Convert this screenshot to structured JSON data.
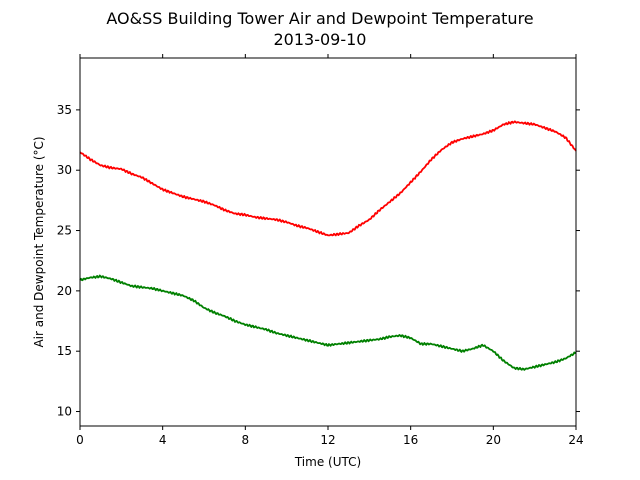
{
  "chart_data": {
    "type": "line",
    "title": "AO&SS Building Tower Air and Dewpoint Temperature",
    "subtitle": "2013-09-10",
    "xlabel": "Time (UTC)",
    "ylabel": "Air and Dewpoint Temperature (°C)",
    "xlim": [
      0,
      24
    ],
    "ylim": [
      8.8,
      39.3
    ],
    "xticks": [
      0,
      4,
      8,
      12,
      16,
      20,
      24
    ],
    "yticks": [
      10,
      15,
      20,
      25,
      30,
      35
    ],
    "grid": false,
    "series": [
      {
        "color": "#ff0000",
        "x": [
          0,
          0.5,
          1,
          1.5,
          2,
          2.5,
          3,
          3.5,
          4,
          4.5,
          5,
          5.5,
          6,
          6.5,
          7,
          7.5,
          8,
          8.5,
          9,
          9.5,
          10,
          10.5,
          11,
          11.5,
          12,
          12.5,
          13,
          13.5,
          14,
          14.5,
          15,
          15.5,
          16,
          16.5,
          17,
          17.5,
          18,
          18.5,
          19,
          19.5,
          20,
          20.5,
          21,
          21.5,
          22,
          22.5,
          23,
          23.5,
          24
        ],
        "y": [
          31.5,
          30.9,
          30.4,
          30.2,
          30.1,
          29.7,
          29.4,
          28.9,
          28.4,
          28.1,
          27.8,
          27.6,
          27.4,
          27.1,
          26.7,
          26.4,
          26.3,
          26.1,
          26.0,
          25.9,
          25.7,
          25.4,
          25.2,
          24.9,
          24.6,
          24.7,
          24.8,
          25.4,
          25.9,
          26.7,
          27.4,
          28.1,
          29.0,
          29.9,
          30.9,
          31.7,
          32.3,
          32.6,
          32.8,
          33.0,
          33.3,
          33.8,
          34.0,
          33.9,
          33.8,
          33.5,
          33.2,
          32.7,
          31.6
        ]
      },
      {
        "color": "#008000",
        "x": [
          0,
          0.5,
          1,
          1.5,
          2,
          2.5,
          3,
          3.5,
          4,
          4.5,
          5,
          5.5,
          6,
          6.5,
          7,
          7.5,
          8,
          8.5,
          9,
          9.5,
          10,
          10.5,
          11,
          11.5,
          12,
          12.5,
          13,
          13.5,
          14,
          14.5,
          15,
          15.5,
          16,
          16.5,
          17,
          17.5,
          18,
          18.5,
          19,
          19.5,
          20,
          20.5,
          21,
          21.5,
          22,
          22.5,
          23,
          23.5,
          24
        ],
        "y": [
          20.9,
          21.1,
          21.2,
          21.0,
          20.7,
          20.4,
          20.3,
          20.2,
          20.0,
          19.8,
          19.6,
          19.2,
          18.6,
          18.2,
          17.9,
          17.5,
          17.2,
          17.0,
          16.8,
          16.5,
          16.3,
          16.1,
          15.9,
          15.7,
          15.5,
          15.6,
          15.7,
          15.8,
          15.9,
          16.0,
          16.2,
          16.3,
          16.1,
          15.6,
          15.6,
          15.4,
          15.2,
          15.0,
          15.2,
          15.5,
          15.0,
          14.2,
          13.6,
          13.5,
          13.7,
          13.9,
          14.1,
          14.4,
          14.9
        ]
      }
    ]
  }
}
